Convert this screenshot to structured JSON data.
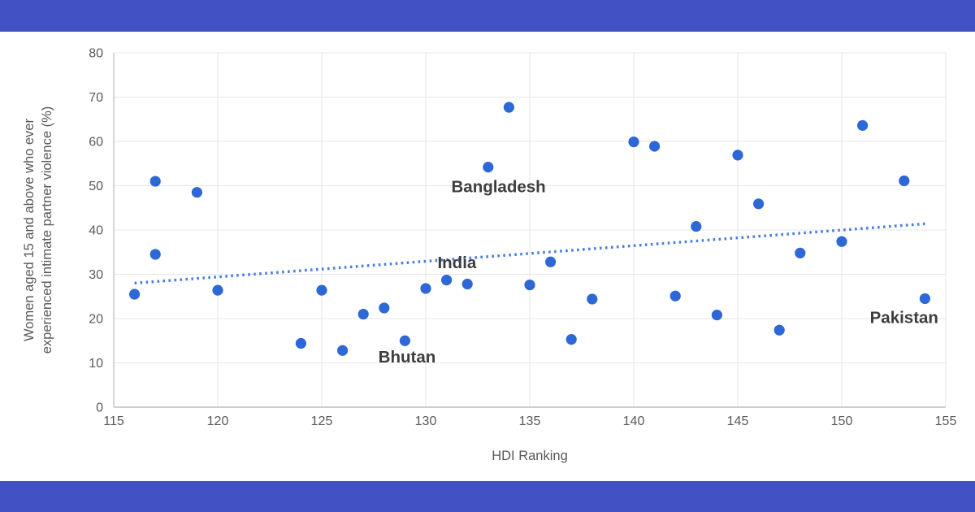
{
  "banners": {
    "color": "#4252c4"
  },
  "chart_data": {
    "type": "scatter",
    "title": "",
    "xlabel": "HDI Ranking",
    "ylabel_line1": "Women aged 15 and above who ever",
    "ylabel_line2": "experienced intimate partner violence (%)",
    "xlim": [
      115,
      155
    ],
    "ylim": [
      0,
      80
    ],
    "xticks": [
      115,
      120,
      125,
      130,
      135,
      140,
      145,
      150,
      155
    ],
    "yticks": [
      0,
      10,
      20,
      30,
      40,
      50,
      60,
      70,
      80
    ],
    "grid": true,
    "legend": "none",
    "points": [
      [
        116,
        25.5
      ],
      [
        117,
        34.5
      ],
      [
        117,
        51.0
      ],
      [
        119,
        48.5
      ],
      [
        120,
        26.4
      ],
      [
        124,
        14.4
      ],
      [
        125,
        26.4
      ],
      [
        126,
        12.8
      ],
      [
        127,
        21.0
      ],
      [
        128,
        22.4
      ],
      [
        129,
        15.0
      ],
      [
        130,
        26.8
      ],
      [
        131,
        28.7
      ],
      [
        132,
        27.8
      ],
      [
        133,
        54.2
      ],
      [
        134,
        67.7
      ],
      [
        135,
        27.6
      ],
      [
        136,
        32.8
      ],
      [
        137,
        15.3
      ],
      [
        138,
        24.4
      ],
      [
        140,
        59.9
      ],
      [
        141,
        58.9
      ],
      [
        142,
        25.1
      ],
      [
        143,
        40.8
      ],
      [
        144,
        20.8
      ],
      [
        145,
        56.9
      ],
      [
        146,
        45.9
      ],
      [
        147,
        17.4
      ],
      [
        148,
        34.8
      ],
      [
        150,
        37.4
      ],
      [
        151,
        63.6
      ],
      [
        153,
        51.1
      ],
      [
        154,
        24.5
      ]
    ],
    "labeled_points": {
      "Bangladesh": [
        133,
        54.2
      ],
      "India": [
        131,
        28.7
      ],
      "Bhutan": [
        129,
        15.0
      ],
      "Pakistan": [
        154,
        24.5
      ]
    },
    "annotations": [
      {
        "text": "Bangladesh",
        "x": 133.5,
        "y": 49.8
      },
      {
        "text": "India",
        "x": 131.5,
        "y": 32.7
      },
      {
        "text": "Bhutan",
        "x": 129.1,
        "y": 11.4
      },
      {
        "text": "Pakistan",
        "x": 153.0,
        "y": 20.3
      }
    ],
    "trendline": {
      "x1": 116,
      "y1": 28.0,
      "x2": 154,
      "y2": 41.4,
      "style": "dotted"
    },
    "colors": {
      "marker": "#2d68d6",
      "trendline": "#4b7ce0",
      "gridline": "#e7e7e7",
      "axis_line": "#c6c6c6",
      "tick_label": "#595959",
      "axis_title": "#595959",
      "annotation": "#3d3d3d"
    }
  }
}
